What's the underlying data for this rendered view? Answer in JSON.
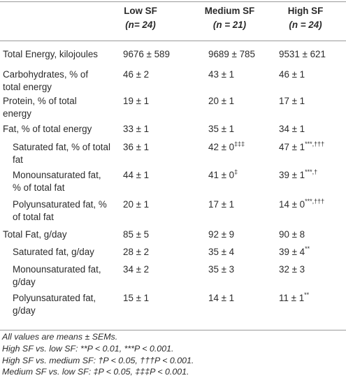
{
  "header": {
    "low": {
      "title": "Low SF",
      "n": "(n= 24)"
    },
    "medium": {
      "title": "Medium SF",
      "n": "(n = 21)"
    },
    "high": {
      "title": "High SF",
      "n": "(n = 24)"
    }
  },
  "rows": [
    {
      "label": "Total Energy, kilojoules",
      "low": "9676 ± 589",
      "medium": "9689 ± 785",
      "high": "9531 ± 621",
      "medium_sup": "",
      "high_sup": ""
    },
    {
      "label": "Carbohydrates, % of total energy",
      "low": "46 ± 2",
      "medium": "43 ± 1",
      "high": "46 ± 1",
      "medium_sup": "",
      "high_sup": ""
    },
    {
      "label": "Protein, % of total energy",
      "low": "19 ± 1",
      "medium": "20 ± 1",
      "high": "17 ± 1",
      "medium_sup": "",
      "high_sup": ""
    },
    {
      "label": "Fat, % of total energy",
      "low": "33 ± 1",
      "medium": "35 ± 1",
      "high": "34 ± 1",
      "medium_sup": "",
      "high_sup": ""
    },
    {
      "label": "Saturated fat, % of total fat",
      "low": "36 ± 1",
      "medium": "42 ± 0",
      "high": "47 ± 1",
      "medium_sup": "‡‡‡",
      "high_sup": "***,†††"
    },
    {
      "label": "Monounsaturated fat, % of total fat",
      "low": "44 ± 1",
      "medium": "41 ± 0",
      "high": "39 ± 1",
      "medium_sup": "‡",
      "high_sup": "***,†"
    },
    {
      "label": "Polyunsaturated fat, % of total fat",
      "low": "20 ± 1",
      "medium": "17 ± 1",
      "high": "14 ± 0",
      "medium_sup": "",
      "high_sup": "***,†††"
    },
    {
      "label": "Total Fat, g/day",
      "low": "85 ± 5",
      "medium": "92 ± 9",
      "high": "90 ± 8",
      "medium_sup": "",
      "high_sup": ""
    },
    {
      "label": "Saturated fat, g/day",
      "low": "28 ± 2",
      "medium": "35 ± 4",
      "high": "39 ± 4",
      "medium_sup": "",
      "high_sup": "**"
    },
    {
      "label": "Monounsaturated fat, g/day",
      "low": "34 ± 2",
      "medium": "35 ± 3",
      "high": "32 ± 3",
      "medium_sup": "",
      "high_sup": ""
    },
    {
      "label": "Polyunsaturated fat, g/day",
      "low": "15 ± 1",
      "medium": "14 ± 1",
      "high": "11 ± 1",
      "medium_sup": "",
      "high_sup": "**"
    }
  ],
  "footnotes": [
    "All values are means ± SEMs.",
    "High SF vs. low SF: **P < 0.01, ***P < 0.001.",
    "High SF vs. medium SF: †P < 0.05, †††P < 0.001.",
    "Medium SF vs. low SF: ‡P < 0.05, ‡‡‡P < 0.001."
  ]
}
